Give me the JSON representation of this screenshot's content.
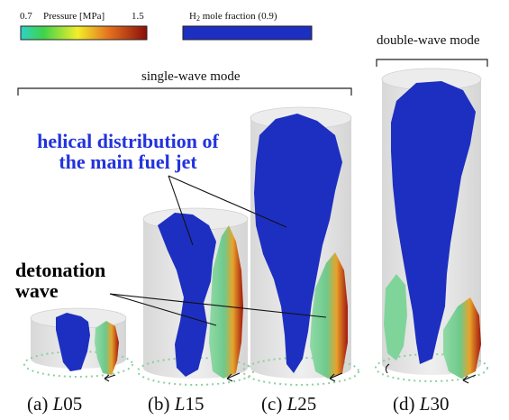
{
  "legend": {
    "pressure_min": "0.7",
    "pressure_title": "Pressure [MPa]",
    "pressure_max": "1.5",
    "h2_prefix": "H",
    "h2_sub": "2",
    "h2_suffix": " mole fraction (0.9)"
  },
  "modes": {
    "single": "single-wave mode",
    "double": "double-wave mode"
  },
  "annotations": {
    "helical_line1": "helical distribution of",
    "helical_line2": "the main fuel jet",
    "detonation_line1": "detonation",
    "detonation_line2": "wave"
  },
  "panels": [
    {
      "prefix": "(a) ",
      "italic": "L",
      "num": "05"
    },
    {
      "prefix": "(b) ",
      "italic": "L",
      "num": "15"
    },
    {
      "prefix": "(c) ",
      "italic": "L",
      "num": "25"
    },
    {
      "prefix": "(d) ",
      "italic": "L",
      "num": "30"
    }
  ],
  "colors": {
    "fuel": "#1d2fc0",
    "cylinder": "#e4e4e4",
    "wave_green": "#7fd49a",
    "wave_red": "#b01a10",
    "helical_text": "#2233dd"
  }
}
